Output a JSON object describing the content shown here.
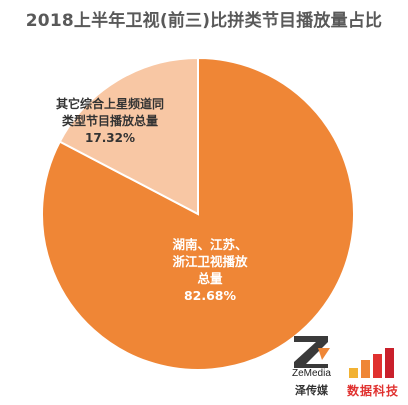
{
  "chart_data": {
    "type": "pie",
    "title": "2018上半年卫视(前三)比拼类节目播放量占比",
    "slices": [
      {
        "label": "湖南、江苏、浙江卫视播放总量",
        "value": 82.68,
        "display": "82.68%",
        "color": "#ef8636"
      },
      {
        "label": "其它综合上星频道同类型节目播放总量",
        "value": 17.32,
        "display": "17.32%",
        "color": "#f8c7a4"
      }
    ],
    "labels_inside": true
  },
  "watermarks": {
    "zemedia_name": "ZeMedia",
    "zemedia_cn": "泽传媒",
    "shuju_cn": "数据科技"
  }
}
